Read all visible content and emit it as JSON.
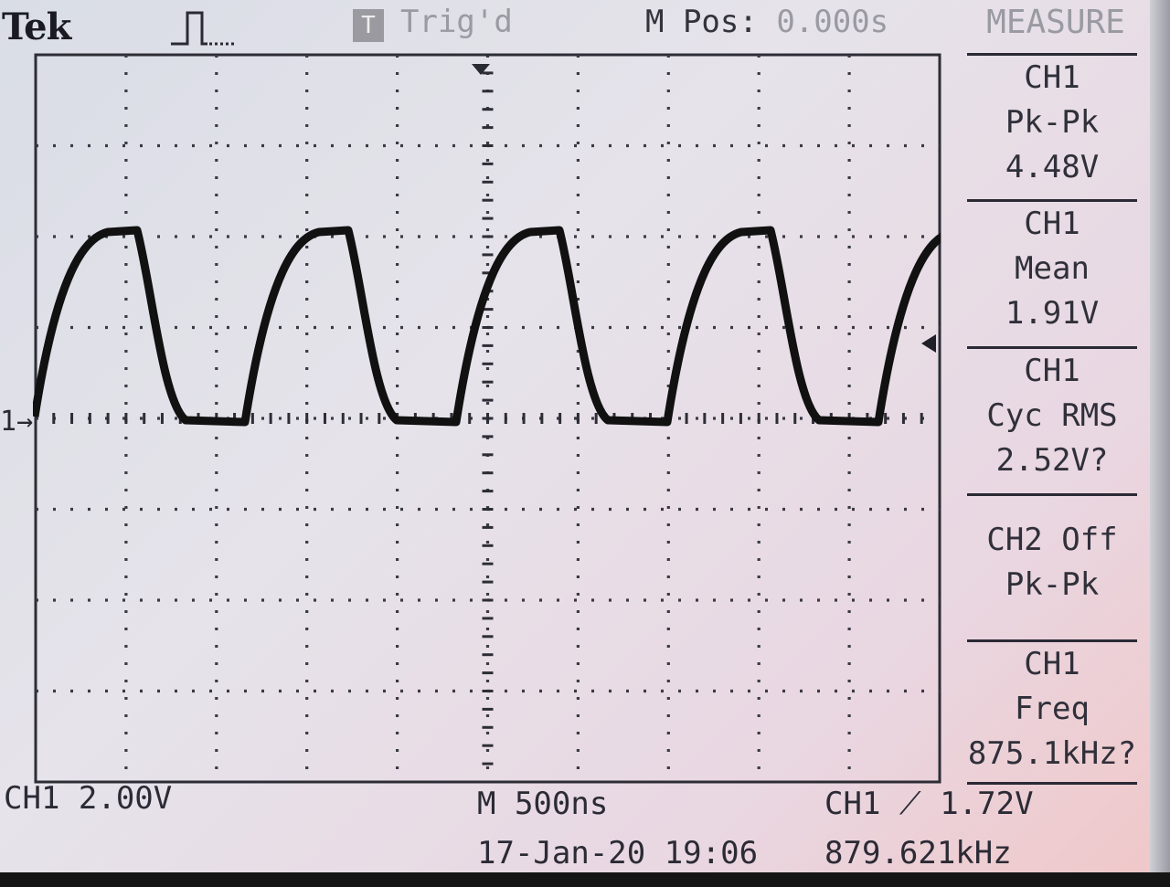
{
  "header": {
    "brand": "Tek",
    "acquire_icon": "pulse-acquire-icon",
    "trigger_badge": "T",
    "trigger_status": "Trig'd",
    "main_position_label": "M Pos:",
    "main_position_value": "0.000s"
  },
  "menu": {
    "title": "MEASURE",
    "items": [
      {
        "lines": [
          "CH1",
          "Pk-Pk",
          "4.48V"
        ]
      },
      {
        "lines": [
          "CH1",
          "Mean",
          "1.91V"
        ]
      },
      {
        "lines": [
          "CH1",
          "Cyc RMS",
          "2.52V?"
        ]
      },
      {
        "lines": [
          "CH2 Off",
          "Pk-Pk"
        ]
      },
      {
        "lines": [
          "CH1",
          "Freq",
          "875.1kHz?"
        ]
      }
    ]
  },
  "footer": {
    "ch1_scale": "CH1  2.00V",
    "timebase": "M 500ns",
    "trigger_source": "CH1",
    "trigger_level": "1.72V",
    "trigger_slope_icon": "rising-edge-icon",
    "datetime": "17-Jan-20 19:06",
    "trigger_frequency": "879.621kHz"
  },
  "screen": {
    "channel_marker": "1",
    "trace_color": "#111111",
    "grid_color": "#3a3a44"
  }
}
